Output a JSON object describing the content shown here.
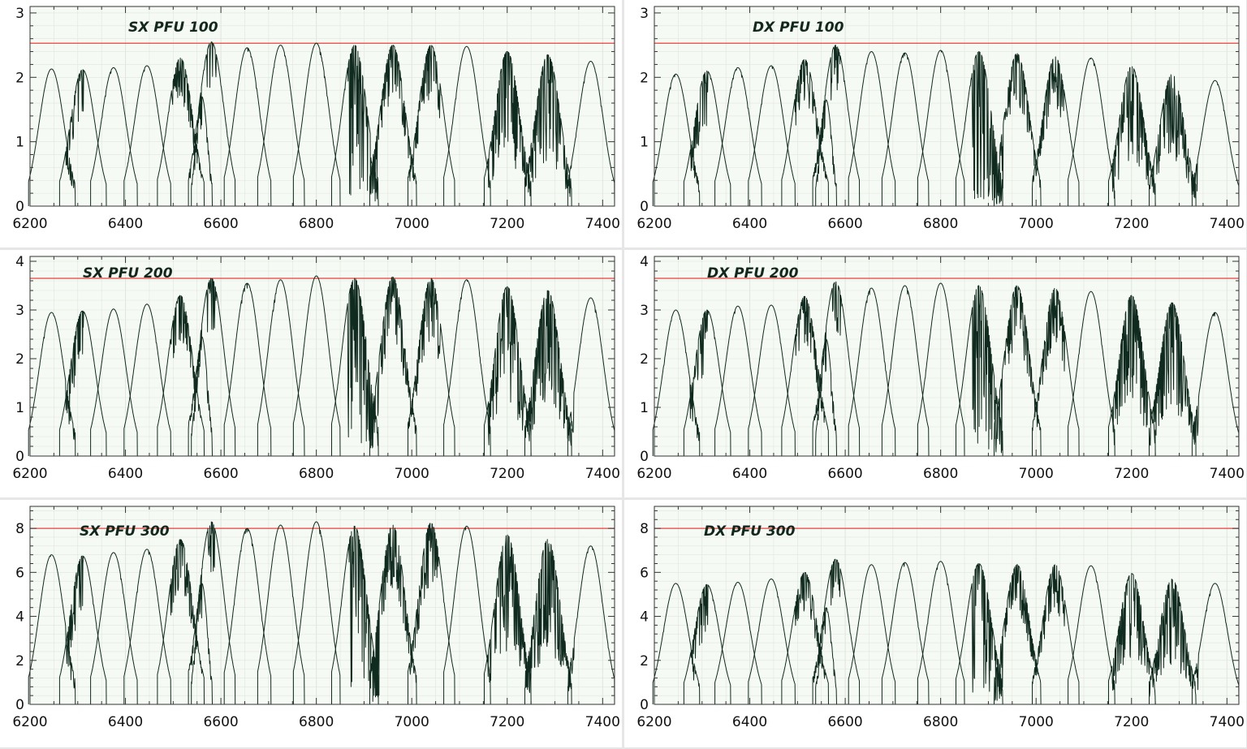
{
  "chart_data": [
    {
      "type": "line",
      "title": "SX PFU 100",
      "xlim": [
        6200,
        7425
      ],
      "ylim": [
        0,
        3.1
      ],
      "xticks": [
        6200,
        6400,
        6600,
        6800,
        7000,
        7200,
        7400
      ],
      "yticks": [
        0,
        1,
        2,
        3
      ],
      "threshold": 2.53,
      "order_centers": [
        6245,
        6310,
        6375,
        6445,
        6515,
        6560,
        6580,
        6655,
        6725,
        6800,
        6880,
        6960,
        7040,
        7115,
        7200,
        7285,
        7375
      ],
      "order_peaks": [
        2.13,
        2.12,
        2.15,
        2.18,
        2.3,
        1.7,
        2.55,
        2.46,
        2.5,
        2.53,
        2.5,
        2.5,
        2.5,
        2.48,
        2.4,
        2.35,
        2.25
      ]
    },
    {
      "type": "line",
      "title": "DX PFU 100",
      "xlim": [
        6200,
        7425
      ],
      "ylim": [
        0,
        3.1
      ],
      "xticks": [
        6200,
        6400,
        6600,
        6800,
        7000,
        7200,
        7400
      ],
      "yticks": [
        0,
        1,
        2,
        3
      ],
      "threshold": 2.53,
      "order_centers": [
        6245,
        6310,
        6375,
        6445,
        6515,
        6560,
        6580,
        6655,
        6725,
        6800,
        6880,
        6960,
        7040,
        7115,
        7200,
        7285,
        7375
      ],
      "order_peaks": [
        2.05,
        2.1,
        2.15,
        2.18,
        2.28,
        1.65,
        2.5,
        2.4,
        2.38,
        2.42,
        2.4,
        2.37,
        2.32,
        2.3,
        2.17,
        2.05,
        1.95
      ]
    },
    {
      "type": "line",
      "title": "SX PFU 200",
      "xlim": [
        6200,
        7425
      ],
      "ylim": [
        0,
        4.1
      ],
      "xticks": [
        6200,
        6400,
        6600,
        6800,
        7000,
        7200,
        7400
      ],
      "yticks": [
        0,
        1,
        2,
        3,
        4
      ],
      "threshold": 3.65,
      "order_centers": [
        6245,
        6310,
        6375,
        6445,
        6515,
        6560,
        6580,
        6655,
        6725,
        6800,
        6880,
        6960,
        7040,
        7115,
        7200,
        7285,
        7375
      ],
      "order_peaks": [
        2.95,
        2.98,
        3.02,
        3.12,
        3.3,
        2.45,
        3.65,
        3.55,
        3.62,
        3.7,
        3.65,
        3.68,
        3.65,
        3.62,
        3.48,
        3.4,
        3.25
      ]
    },
    {
      "type": "line",
      "title": "DX PFU 200",
      "xlim": [
        6200,
        7425
      ],
      "ylim": [
        0,
        4.1
      ],
      "xticks": [
        6200,
        6400,
        6600,
        6800,
        7000,
        7200,
        7400
      ],
      "yticks": [
        0,
        1,
        2,
        3,
        4
      ],
      "threshold": 3.65,
      "order_centers": [
        6245,
        6310,
        6375,
        6445,
        6515,
        6560,
        6580,
        6655,
        6725,
        6800,
        6880,
        6960,
        7040,
        7115,
        7200,
        7285,
        7375
      ],
      "order_peaks": [
        3.0,
        3.0,
        3.08,
        3.1,
        3.28,
        2.4,
        3.58,
        3.45,
        3.5,
        3.55,
        3.5,
        3.5,
        3.45,
        3.38,
        3.3,
        3.15,
        2.95
      ]
    },
    {
      "type": "line",
      "title": "SX PFU 300",
      "xlim": [
        6200,
        7425
      ],
      "ylim": [
        0,
        9
      ],
      "xticks": [
        6200,
        6400,
        6600,
        6800,
        7000,
        7200,
        7400
      ],
      "yticks": [
        0,
        2,
        4,
        6,
        8
      ],
      "threshold": 8.0,
      "order_centers": [
        6245,
        6310,
        6375,
        6445,
        6515,
        6560,
        6580,
        6655,
        6725,
        6800,
        6880,
        6960,
        7040,
        7115,
        7200,
        7285,
        7375
      ],
      "order_peaks": [
        6.8,
        6.75,
        6.9,
        7.05,
        7.5,
        5.5,
        8.3,
        8.0,
        8.15,
        8.3,
        8.1,
        8.15,
        8.25,
        8.1,
        7.7,
        7.5,
        7.2
      ]
    },
    {
      "type": "line",
      "title": "DX PFU 300",
      "xlim": [
        6200,
        7425
      ],
      "ylim": [
        0,
        9
      ],
      "xticks": [
        6200,
        6400,
        6600,
        6800,
        7000,
        7200,
        7400
      ],
      "yticks": [
        0,
        2,
        4,
        6,
        8
      ],
      "threshold": 8.0,
      "order_centers": [
        6245,
        6310,
        6375,
        6445,
        6515,
        6560,
        6580,
        6655,
        6725,
        6800,
        6880,
        6960,
        7040,
        7115,
        7200,
        7285,
        7375
      ],
      "order_peaks": [
        5.5,
        5.45,
        5.55,
        5.7,
        6.0,
        4.4,
        6.6,
        6.35,
        6.45,
        6.5,
        6.4,
        6.35,
        6.35,
        6.3,
        5.95,
        5.7,
        5.5
      ]
    }
  ],
  "colors": {
    "curve": "#0f2a1e",
    "threshold": "#e8403c",
    "plot_bg": "#f6faf4",
    "grid": "#dfe6dc"
  }
}
